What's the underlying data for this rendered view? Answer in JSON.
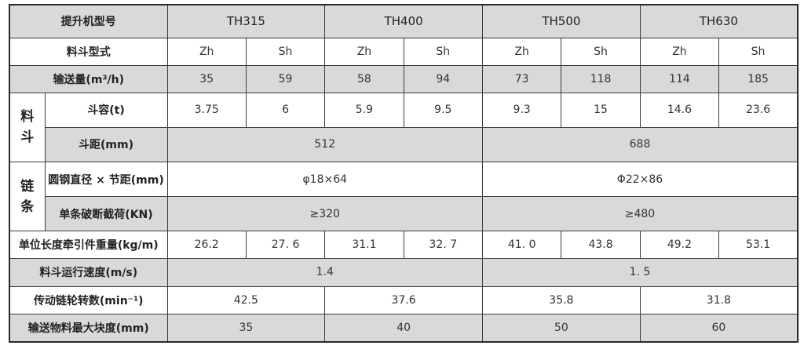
{
  "header": {
    "label": "提升机型号",
    "models": [
      "TH315",
      "TH400",
      "TH500",
      "TH630"
    ]
  },
  "bucket_type": {
    "label": "料斗型式",
    "values": [
      "Zh",
      "Sh",
      "Zh",
      "Sh",
      "Zh",
      "Sh",
      "Zh",
      "Sh"
    ]
  },
  "capacity": {
    "label": "输送量(m³/h)",
    "values": [
      "35",
      "59",
      "58",
      "94",
      "73",
      "118",
      "114",
      "185"
    ]
  },
  "bucket_group": {
    "label_chars": [
      "料",
      "斗"
    ]
  },
  "bucket_volume": {
    "label": "斗容(t)",
    "values": [
      "3.75",
      "6",
      "5.9",
      "9.5",
      "9.3",
      "15",
      "14.6",
      "23.6"
    ]
  },
  "bucket_pitch": {
    "label": "斗距(mm)",
    "values": [
      "512",
      "688"
    ]
  },
  "chain_group": {
    "label_chars": [
      "链",
      "条"
    ]
  },
  "chain_size": {
    "label": "圆钢直径 × 节距(mm)",
    "values": [
      "φ18×64",
      "Φ22×86"
    ]
  },
  "chain_break_load": {
    "label": "单条破断截荷(KN)",
    "values": [
      "≥320",
      "≥480"
    ]
  },
  "unit_weight": {
    "label": "单位长度牵引件重量(kg/m)",
    "values": [
      "26.2",
      "27. 6",
      "31.1",
      "32. 7",
      "41. 0",
      "43.8",
      "49.2",
      "53.1"
    ]
  },
  "bucket_speed": {
    "label": "料斗运行速度(m/s)",
    "values": [
      "1.4",
      "1. 5"
    ]
  },
  "sprocket_speed": {
    "label": "传动链轮转数(min⁻¹)",
    "values": [
      "42.5",
      "37.6",
      "35.8",
      "31.8"
    ]
  },
  "max_lump": {
    "label": "输送物料最大块度(mm)",
    "values": [
      "35",
      "40",
      "50",
      "60"
    ]
  }
}
